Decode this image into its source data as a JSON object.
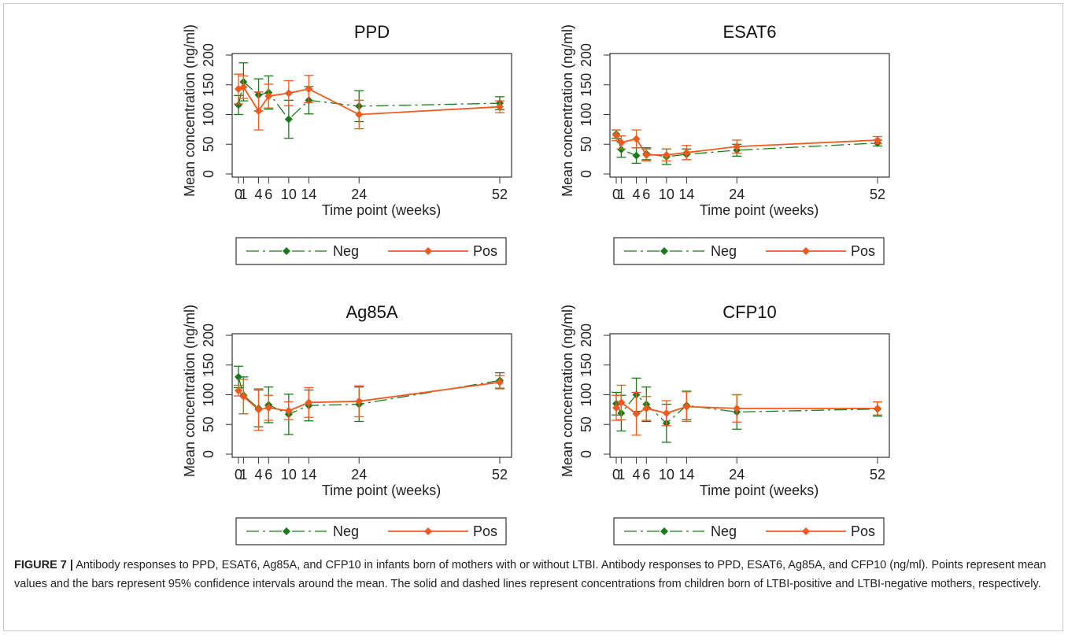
{
  "colors": {
    "neg": "#1a7a1a",
    "pos": "#f05a1e",
    "axis": "#333333"
  },
  "chart_data": [
    {
      "type": "line",
      "title": "PPD",
      "xlabel": "Time point (weeks)",
      "ylabel": "Mean concentration (ng/ml)",
      "xticks": [
        0,
        1,
        4,
        6,
        10,
        14,
        24,
        52
      ],
      "xtick_labels": [
        "0",
        "1",
        "4",
        "6",
        "10",
        "14",
        "24",
        "52"
      ],
      "yticks": [
        0,
        50,
        100,
        150,
        200
      ],
      "ylim": [
        0,
        200
      ],
      "x": [
        0,
        1,
        4,
        6,
        10,
        14,
        24,
        52
      ],
      "series": [
        {
          "name": "Neg",
          "values": [
            116,
            155,
            133,
            137,
            92,
            124,
            114,
            119
          ],
          "lower": [
            100,
            123,
            106,
            109,
            60,
            101,
            88,
            108
          ],
          "upper": [
            132,
            187,
            160,
            165,
            124,
            147,
            140,
            130
          ]
        },
        {
          "name": "Pos",
          "values": [
            143,
            146,
            106,
            131,
            136,
            143,
            100,
            113
          ],
          "lower": [
            118,
            127,
            74,
            111,
            115,
            120,
            76,
            103
          ],
          "upper": [
            168,
            165,
            138,
            151,
            157,
            166,
            124,
            123
          ]
        }
      ],
      "legend": [
        "Neg",
        "Pos"
      ]
    },
    {
      "type": "line",
      "title": "ESAT6",
      "xlabel": "Time point (weeks)",
      "ylabel": "Mean concentration (ng/ml)",
      "xticks": [
        0,
        1,
        4,
        6,
        10,
        14,
        24,
        52
      ],
      "xtick_labels": [
        "0",
        "1",
        "4",
        "6",
        "10",
        "14",
        "24",
        "52"
      ],
      "yticks": [
        0,
        50,
        100,
        150,
        200
      ],
      "ylim": [
        0,
        200
      ],
      "x": [
        0,
        1,
        4,
        6,
        10,
        14,
        24,
        52
      ],
      "series": [
        {
          "name": "Neg",
          "values": [
            67,
            41,
            31,
            34,
            29,
            33,
            40,
            52
          ],
          "lower": [
            60,
            28,
            18,
            24,
            16,
            24,
            30,
            47
          ],
          "upper": [
            74,
            54,
            44,
            44,
            42,
            42,
            50,
            57
          ]
        },
        {
          "name": "Pos",
          "values": [
            65,
            53,
            59,
            32,
            32,
            36,
            46,
            57
          ],
          "lower": [
            56,
            42,
            44,
            22,
            22,
            24,
            35,
            51
          ],
          "upper": [
            74,
            64,
            74,
            42,
            42,
            48,
            57,
            63
          ]
        }
      ],
      "legend": [
        "Neg",
        "Pos"
      ]
    },
    {
      "type": "line",
      "title": "Ag85A",
      "xlabel": "Time point (weeks)",
      "ylabel": "Mean concentration (ng/ml)",
      "xticks": [
        0,
        1,
        4,
        6,
        10,
        14,
        24,
        52
      ],
      "xtick_labels": [
        "0",
        "1",
        "4",
        "6",
        "10",
        "14",
        "24",
        "52"
      ],
      "yticks": [
        0,
        50,
        100,
        150,
        200
      ],
      "ylim": [
        0,
        200
      ],
      "x": [
        0,
        1,
        4,
        6,
        10,
        14,
        24,
        52
      ],
      "series": [
        {
          "name": "Neg",
          "values": [
            130,
            99,
            77,
            83,
            67,
            82,
            84,
            124
          ],
          "lower": [
            112,
            68,
            46,
            53,
            33,
            56,
            55,
            111
          ],
          "upper": [
            148,
            130,
            108,
            113,
            101,
            108,
            113,
            137
          ]
        },
        {
          "name": "Pos",
          "values": [
            107,
            97,
            75,
            78,
            73,
            87,
            89,
            121
          ],
          "lower": [
            98,
            68,
            40,
            57,
            58,
            62,
            63,
            110
          ],
          "upper": [
            116,
            126,
            110,
            99,
            88,
            112,
            115,
            132
          ]
        }
      ],
      "legend": [
        "Neg",
        "Pos"
      ]
    },
    {
      "type": "line",
      "title": "CFP10",
      "xlabel": "Time point (weeks)",
      "ylabel": "Mean concentration (ng/ml)",
      "xticks": [
        0,
        1,
        4,
        6,
        10,
        14,
        24,
        52
      ],
      "xtick_labels": [
        "0",
        "1",
        "4",
        "6",
        "10",
        "14",
        "24",
        "52"
      ],
      "yticks": [
        0,
        50,
        100,
        150,
        200
      ],
      "ylim": [
        0,
        200
      ],
      "x": [
        0,
        1,
        4,
        6,
        10,
        14,
        24,
        52
      ],
      "series": [
        {
          "name": "Neg",
          "values": [
            85,
            69,
            100,
            84,
            52,
            82,
            71,
            76
          ],
          "lower": [
            66,
            39,
            72,
            55,
            20,
            58,
            42,
            64
          ],
          "upper": [
            104,
            99,
            128,
            113,
            84,
            106,
            100,
            88
          ]
        },
        {
          "name": "Pos",
          "values": [
            78,
            87,
            68,
            77,
            69,
            80,
            77,
            77
          ],
          "lower": [
            57,
            58,
            32,
            57,
            48,
            55,
            54,
            66
          ],
          "upper": [
            99,
            116,
            104,
            97,
            90,
            105,
            100,
            88
          ]
        }
      ],
      "legend": [
        "Neg",
        "Pos"
      ]
    }
  ],
  "caption": {
    "label": "FIGURE 7 |",
    "text": " Antibody responses to PPD, ESAT6, Ag85A, and CFP10 in infants born of mothers with or without LTBI. Antibody responses to PPD, ESAT6, Ag85A, and CFP10 (ng/ml). Points represent mean values and the bars represent 95% confidence intervals around the mean. The solid and dashed lines represent concentrations from children born of LTBI-positive and LTBI-negative mothers, respectively."
  }
}
